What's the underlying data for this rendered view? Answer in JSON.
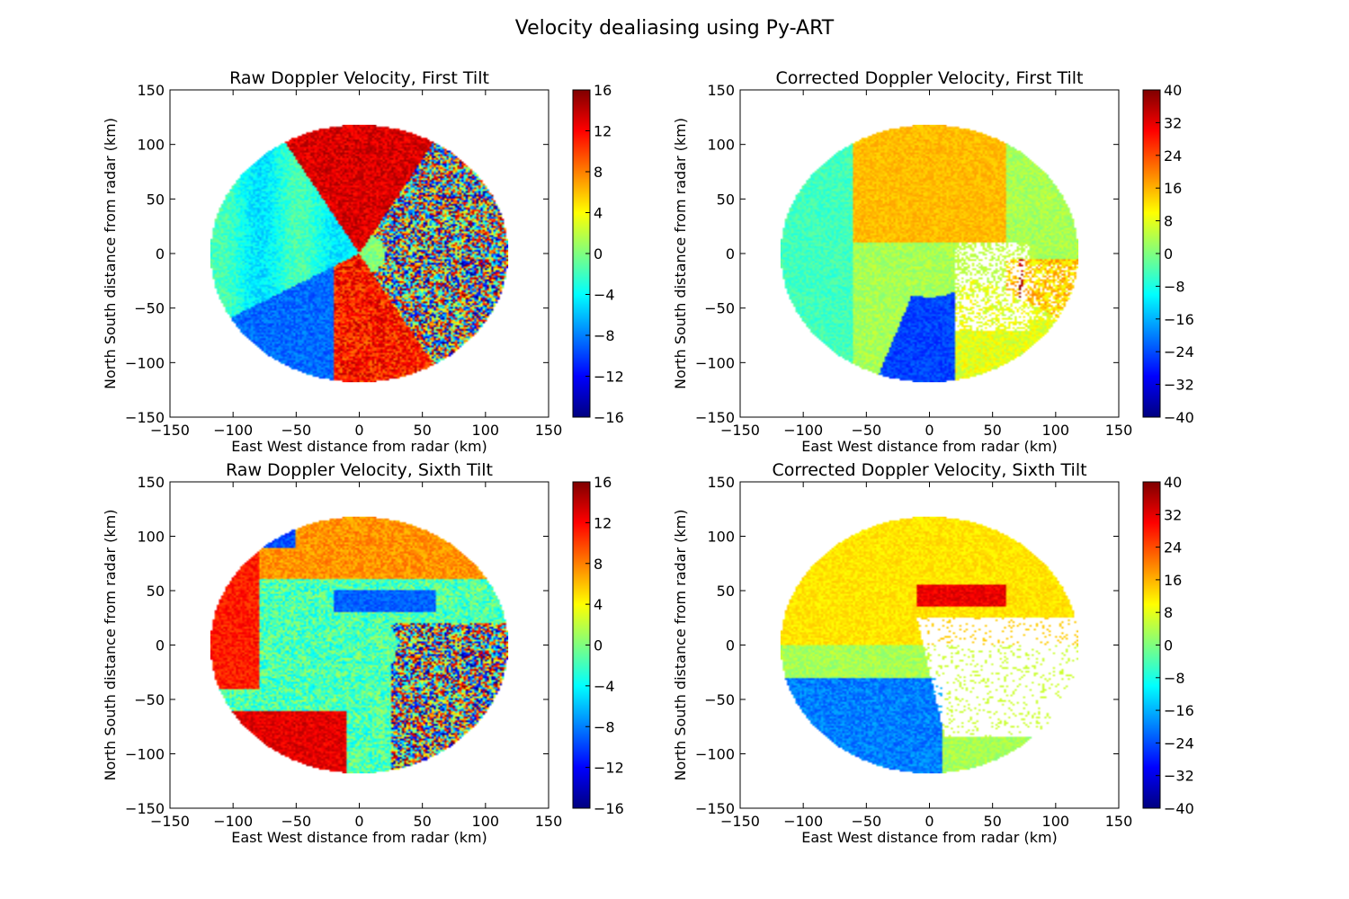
{
  "figure": {
    "suptitle": "Velocity dealiasing using Py-ART"
  },
  "colormap": [
    "#00007f",
    "#0000ff",
    "#007fff",
    "#00ffff",
    "#7fff7f",
    "#ffff00",
    "#ff7f00",
    "#ff0000",
    "#7f0000"
  ],
  "chart_data": [
    {
      "type": "heatmap",
      "title": "Raw Doppler Velocity, First Tilt",
      "xlabel": "East West distance from radar (km)",
      "ylabel": "North South distance from radar (km)",
      "xlim": [
        -150,
        150
      ],
      "ylim": [
        -150,
        150
      ],
      "xticks": [
        "−150",
        "−100",
        "−50",
        "0",
        "50",
        "100",
        "150"
      ],
      "yticks": [
        "−150",
        "−100",
        "−50",
        "0",
        "50",
        "100",
        "150"
      ],
      "colorbar": {
        "range": [
          -16,
          16
        ],
        "ticks": [
          "−16",
          "−12",
          "−8",
          "−4",
          "0",
          "4",
          "8",
          "12",
          "16"
        ]
      },
      "data_extent": {
        "x": [
          -118,
          118
        ],
        "y": [
          -118,
          118
        ]
      },
      "pattern": "raw1"
    },
    {
      "type": "heatmap",
      "title": "Corrected Doppler Velocity, First Tilt",
      "xlabel": "East West distance from radar (km)",
      "ylabel": "North South distance from radar (km)",
      "xlim": [
        -150,
        150
      ],
      "ylim": [
        -150,
        150
      ],
      "xticks": [
        "−150",
        "−100",
        "−50",
        "0",
        "50",
        "100",
        "150"
      ],
      "yticks": [
        "−150",
        "−100",
        "−50",
        "0",
        "50",
        "100",
        "150"
      ],
      "colorbar": {
        "range": [
          -40,
          40
        ],
        "ticks": [
          "−40",
          "−32",
          "−24",
          "−16",
          "−8",
          "0",
          "8",
          "16",
          "24",
          "32",
          "40"
        ]
      },
      "data_extent": {
        "x": [
          -118,
          118
        ],
        "y": [
          -118,
          118
        ]
      },
      "pattern": "cor1"
    },
    {
      "type": "heatmap",
      "title": "Raw Doppler Velocity, Sixth Tilt",
      "xlabel": "East West distance from radar (km)",
      "ylabel": "North South distance from radar (km)",
      "xlim": [
        -150,
        150
      ],
      "ylim": [
        -150,
        150
      ],
      "xticks": [
        "−150",
        "−100",
        "−50",
        "0",
        "50",
        "100",
        "150"
      ],
      "yticks": [
        "−150",
        "−100",
        "−50",
        "0",
        "50",
        "100",
        "150"
      ],
      "colorbar": {
        "range": [
          -16,
          16
        ],
        "ticks": [
          "−16",
          "−12",
          "−8",
          "−4",
          "0",
          "4",
          "8",
          "12",
          "16"
        ]
      },
      "data_extent": {
        "x": [
          -118,
          118
        ],
        "y": [
          -118,
          118
        ]
      },
      "pattern": "raw6"
    },
    {
      "type": "heatmap",
      "title": "Corrected Doppler Velocity, Sixth Tilt",
      "xlabel": "East West distance from radar (km)",
      "ylabel": "North South distance from radar (km)",
      "xlim": [
        -150,
        150
      ],
      "ylim": [
        -150,
        150
      ],
      "xticks": [
        "−150",
        "−100",
        "−50",
        "0",
        "50",
        "100",
        "150"
      ],
      "yticks": [
        "−150",
        "−100",
        "−50",
        "0",
        "50",
        "100",
        "150"
      ],
      "colorbar": {
        "range": [
          -40,
          40
        ],
        "ticks": [
          "−40",
          "−32",
          "−24",
          "−16",
          "−8",
          "0",
          "8",
          "16",
          "24",
          "32",
          "40"
        ]
      },
      "data_extent": {
        "x": [
          -118,
          118
        ],
        "y": [
          -118,
          118
        ]
      },
      "pattern": "cor6"
    }
  ]
}
